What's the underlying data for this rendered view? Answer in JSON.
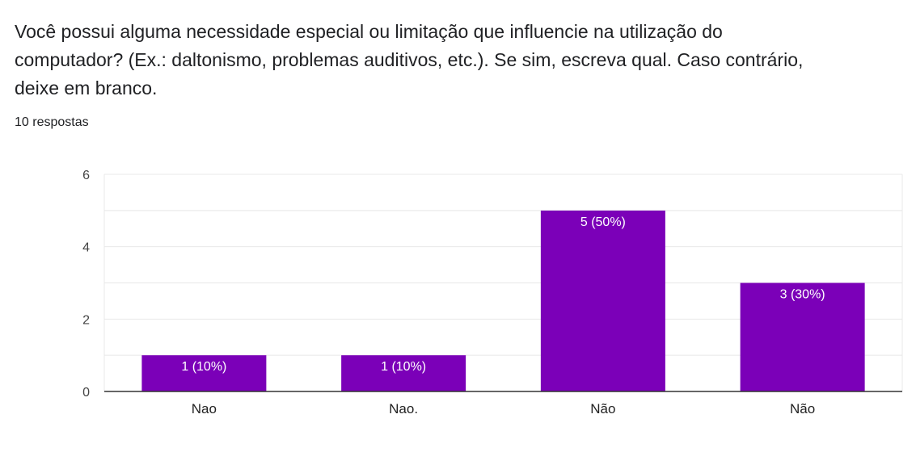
{
  "question": "Você possui alguma necessidade especial ou limitação que influencie na utilização do computador? (Ex.: daltonismo, problemas auditivos, etc.). Se sim, escreva qual. Caso contrário, deixe em branco.",
  "responses": "10 respostas",
  "colors": {
    "bar": "#7b00b8",
    "grid": "#e8e8e8",
    "axis": "#333333"
  },
  "chart_data": {
    "type": "bar",
    "categories": [
      "Nao",
      "Nao.",
      "Não",
      "Não"
    ],
    "values": [
      1,
      1,
      5,
      3
    ],
    "data_labels": [
      "1 (10%)",
      "1 (10%)",
      "5 (50%)",
      "3 (30%)"
    ],
    "yticks": [
      0,
      2,
      4,
      6
    ],
    "ylim": [
      0,
      6
    ],
    "grid": true
  }
}
